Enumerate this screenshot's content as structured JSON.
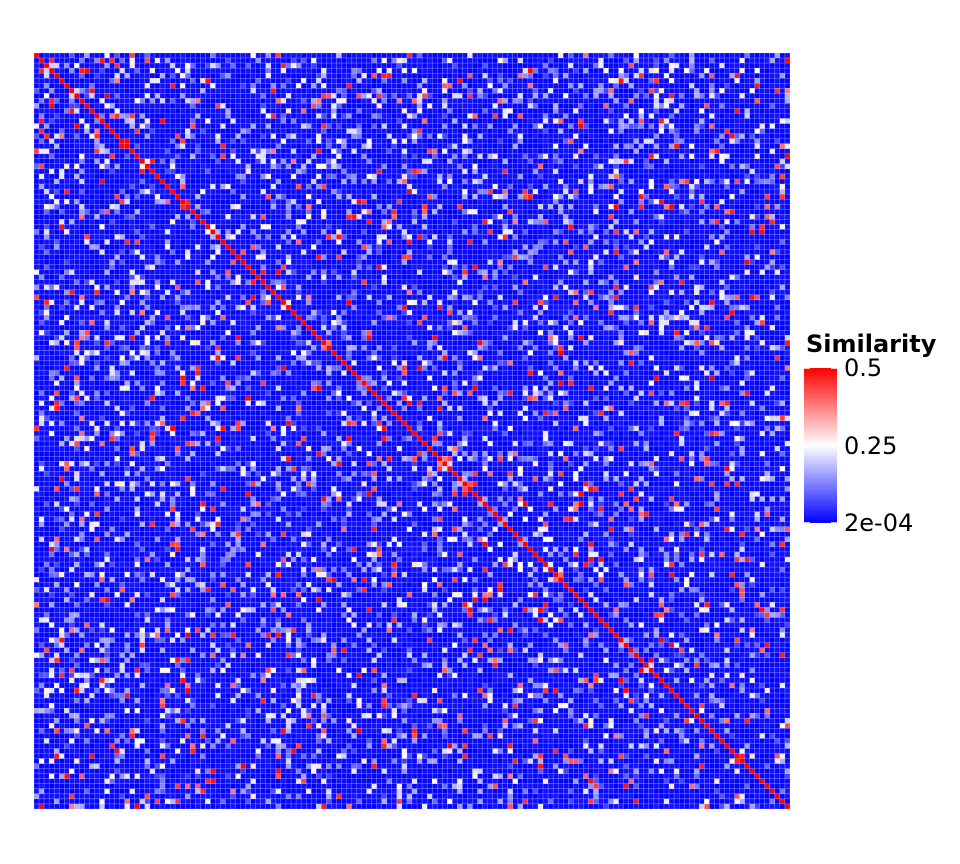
{
  "chart_data": {
    "type": "heatmap",
    "title": "",
    "xlabel": "",
    "ylabel": "",
    "n_rows": 150,
    "n_cols": 150,
    "diagonal_value": 0.5,
    "typical_off_diagonal_value": 0.0002,
    "scale_breaks": [
      0.0002,
      0.25,
      0.5
    ],
    "colors": {
      "low": "#0000ff",
      "mid": "#ffffff",
      "high": "#ff0000"
    },
    "legend": {
      "title": "Similarity",
      "labels": [
        "0.5",
        "0.25",
        "2e-04"
      ],
      "values": [
        0.5,
        0.25,
        0.0002
      ],
      "position": "right"
    },
    "grid": true
  }
}
